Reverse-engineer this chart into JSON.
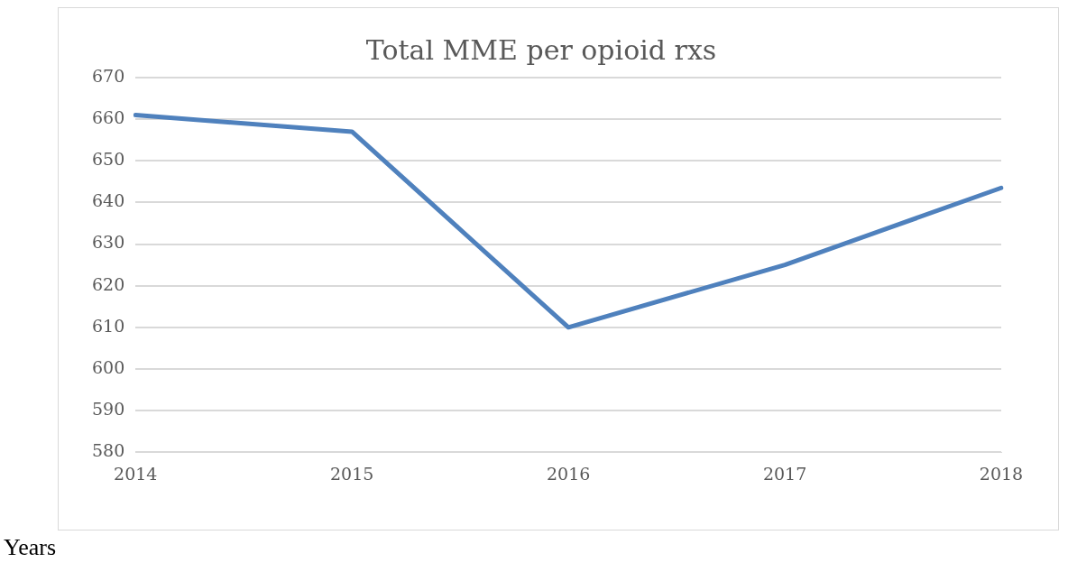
{
  "chart_data": {
    "type": "line",
    "title": "Total MME per opioid rxs",
    "xlabel": "Years",
    "categories": [
      "2014",
      "2015",
      "2016",
      "2017",
      "2018"
    ],
    "series": [
      {
        "color": "#4f81bd",
        "values": [
          661,
          657,
          610,
          625,
          643.5
        ]
      }
    ],
    "ylim": [
      580,
      670
    ],
    "yticks": [
      580,
      590,
      600,
      610,
      620,
      630,
      640,
      650,
      660,
      670
    ],
    "grid": "y",
    "legend": false,
    "marker": "none",
    "line_style": "solid"
  }
}
